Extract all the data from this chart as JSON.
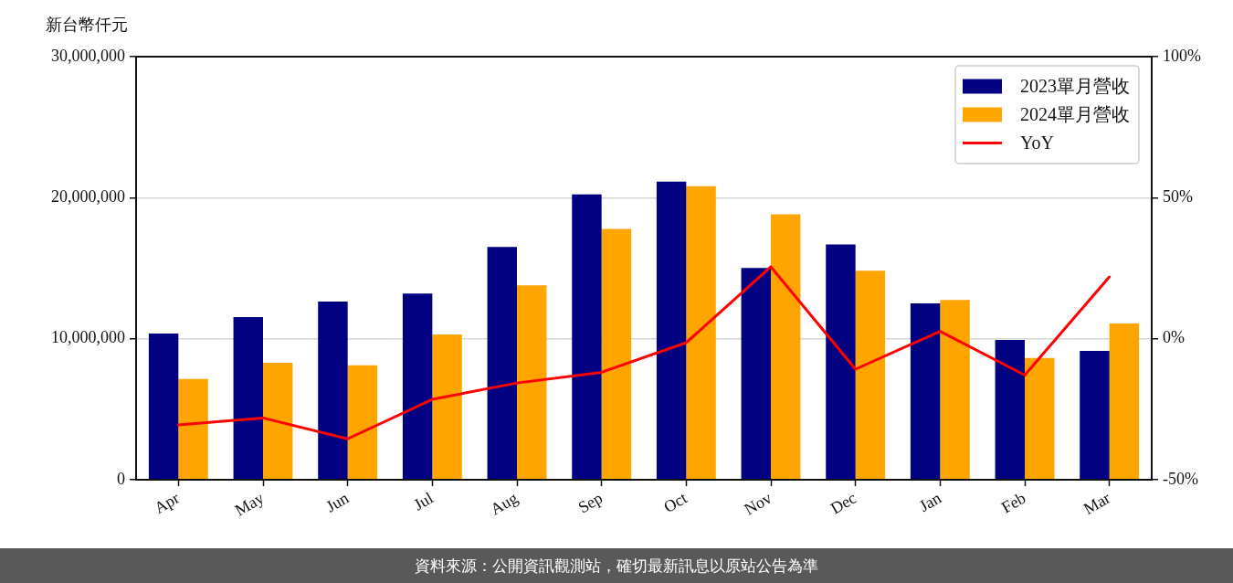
{
  "chart_data": {
    "type": "bar",
    "ylabel": "新台幣仟元",
    "categories": [
      "Apr",
      "May",
      "Jun",
      "Jul",
      "Aug",
      "Sep",
      "Oct",
      "Nov",
      "Dec",
      "Jan",
      "Feb",
      "Mar"
    ],
    "series": [
      {
        "name": "2023單月營收",
        "color": "#000080",
        "values": [
          10370000,
          11530000,
          12630000,
          13200000,
          16500000,
          20240000,
          21140000,
          15010000,
          16690000,
          12500000,
          9920000,
          9140000
        ]
      },
      {
        "name": "2024單月營收",
        "color": "#ffa500",
        "values": [
          7140000,
          8300000,
          8110000,
          10300000,
          13790000,
          17790000,
          20820000,
          18820000,
          14820000,
          12750000,
          8630000,
          11080000
        ]
      },
      {
        "name": "YoY",
        "type": "line",
        "axis": "y2",
        "color": "#ff0000",
        "values": [
          -30.6,
          -28.1,
          -35.5,
          -21.5,
          -15.7,
          -11.9,
          -1.4,
          25.5,
          -10.8,
          2.6,
          -12.9,
          21.9
        ]
      }
    ],
    "ylim": [
      0,
      30000000
    ],
    "yticks": [
      0,
      {
        "value": 10000000,
        "label": "10,000,000"
      },
      {
        "value": 20000000,
        "label": "20,000,000"
      },
      {
        "value": 30000000,
        "label": "30,000,000"
      }
    ],
    "y2lim": [
      -50,
      100
    ],
    "y2ticks": [
      {
        "value": -50,
        "label": "-50%"
      },
      {
        "value": 0,
        "label": "0%"
      },
      {
        "value": 50,
        "label": "50%"
      },
      {
        "value": 100,
        "label": "100%"
      }
    ],
    "grid": "y",
    "legend": "top right",
    "annotations": [
      "資料來源：公開資訊觀測站，確切最新訊息以原站公告為準"
    ]
  }
}
